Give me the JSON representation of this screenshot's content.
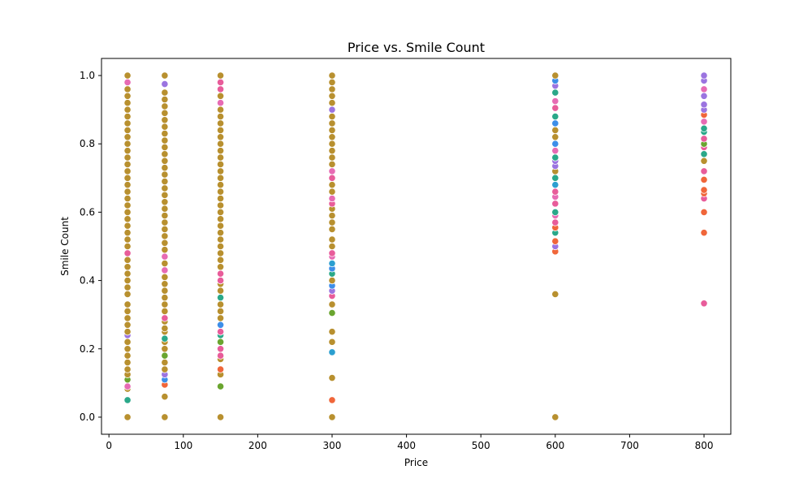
{
  "chart_data": {
    "type": "scatter",
    "title": "Price vs. Smile Count",
    "xlabel": "Price",
    "ylabel": "Smile Count",
    "xlim": [
      -10,
      836
    ],
    "ylim": [
      -0.05,
      1.05
    ],
    "xticks": [
      0,
      100,
      200,
      300,
      400,
      500,
      600,
      700,
      800
    ],
    "yticks": [
      0.0,
      0.2,
      0.4,
      0.6,
      0.8,
      1.0
    ],
    "xtick_labels": [
      "0",
      "100",
      "200",
      "300",
      "400",
      "500",
      "600",
      "700",
      "800"
    ],
    "ytick_labels": [
      "0.0",
      "0.2",
      "0.4",
      "0.6",
      "0.8",
      "1.0"
    ],
    "grid": false,
    "legend": "none",
    "marker_edge_color": "#ffffff",
    "groups": [
      {
        "x": 25,
        "points": [
          [
            0.0,
            "#b8902f"
          ],
          [
            0.05,
            "#2aa889"
          ],
          [
            0.083,
            "#b8902f"
          ],
          [
            0.09,
            "#e76bb4"
          ],
          [
            0.11,
            "#6aa52f"
          ],
          [
            0.125,
            "#b8902f"
          ],
          [
            0.14,
            "#b8902f"
          ],
          [
            0.16,
            "#b8902f"
          ],
          [
            0.18,
            "#b8902f"
          ],
          [
            0.2,
            "#b8902f"
          ],
          [
            0.22,
            "#b8902f"
          ],
          [
            0.24,
            "#9b74e0"
          ],
          [
            0.25,
            "#b8902f"
          ],
          [
            0.27,
            "#b8902f"
          ],
          [
            0.29,
            "#b8902f"
          ],
          [
            0.31,
            "#b8902f"
          ],
          [
            0.33,
            "#b8902f"
          ],
          [
            0.36,
            "#b8902f"
          ],
          [
            0.38,
            "#b8902f"
          ],
          [
            0.4,
            "#b8902f"
          ],
          [
            0.42,
            "#b8902f"
          ],
          [
            0.44,
            "#b8902f"
          ],
          [
            0.46,
            "#b8902f"
          ],
          [
            0.48,
            "#e85c9a"
          ],
          [
            0.5,
            "#b8902f"
          ],
          [
            0.52,
            "#b8902f"
          ],
          [
            0.54,
            "#b8902f"
          ],
          [
            0.56,
            "#b8902f"
          ],
          [
            0.58,
            "#b8902f"
          ],
          [
            0.6,
            "#b8902f"
          ],
          [
            0.62,
            "#b8902f"
          ],
          [
            0.64,
            "#b8902f"
          ],
          [
            0.66,
            "#b8902f"
          ],
          [
            0.68,
            "#b8902f"
          ],
          [
            0.7,
            "#b8902f"
          ],
          [
            0.72,
            "#b8902f"
          ],
          [
            0.74,
            "#b8902f"
          ],
          [
            0.76,
            "#b8902f"
          ],
          [
            0.78,
            "#b8902f"
          ],
          [
            0.8,
            "#b8902f"
          ],
          [
            0.82,
            "#b8902f"
          ],
          [
            0.84,
            "#b8902f"
          ],
          [
            0.86,
            "#b8902f"
          ],
          [
            0.88,
            "#b8902f"
          ],
          [
            0.9,
            "#b8902f"
          ],
          [
            0.92,
            "#b8902f"
          ],
          [
            0.94,
            "#b8902f"
          ],
          [
            0.96,
            "#b8902f"
          ],
          [
            0.98,
            "#e76bb4"
          ],
          [
            1.0,
            "#b8902f"
          ]
        ]
      },
      {
        "x": 75,
        "points": [
          [
            0.0,
            "#b8902f"
          ],
          [
            0.06,
            "#b8902f"
          ],
          [
            0.095,
            "#f0663a"
          ],
          [
            0.11,
            "#3d8ee8"
          ],
          [
            0.125,
            "#9b74e0"
          ],
          [
            0.14,
            "#b8902f"
          ],
          [
            0.16,
            "#b8902f"
          ],
          [
            0.18,
            "#6aa52f"
          ],
          [
            0.2,
            "#b8902f"
          ],
          [
            0.22,
            "#b8902f"
          ],
          [
            0.23,
            "#2aa889"
          ],
          [
            0.25,
            "#b8902f"
          ],
          [
            0.26,
            "#b8902f"
          ],
          [
            0.28,
            "#b8902f"
          ],
          [
            0.29,
            "#e85c9a"
          ],
          [
            0.31,
            "#b8902f"
          ],
          [
            0.33,
            "#b8902f"
          ],
          [
            0.35,
            "#b8902f"
          ],
          [
            0.37,
            "#b8902f"
          ],
          [
            0.39,
            "#b8902f"
          ],
          [
            0.41,
            "#b8902f"
          ],
          [
            0.43,
            "#e76bb4"
          ],
          [
            0.45,
            "#b8902f"
          ],
          [
            0.47,
            "#e76bb4"
          ],
          [
            0.49,
            "#b8902f"
          ],
          [
            0.51,
            "#b8902f"
          ],
          [
            0.53,
            "#b8902f"
          ],
          [
            0.55,
            "#b8902f"
          ],
          [
            0.57,
            "#b8902f"
          ],
          [
            0.59,
            "#b8902f"
          ],
          [
            0.61,
            "#b8902f"
          ],
          [
            0.63,
            "#b8902f"
          ],
          [
            0.65,
            "#b8902f"
          ],
          [
            0.67,
            "#b8902f"
          ],
          [
            0.69,
            "#b8902f"
          ],
          [
            0.71,
            "#b8902f"
          ],
          [
            0.73,
            "#b8902f"
          ],
          [
            0.75,
            "#b8902f"
          ],
          [
            0.77,
            "#b8902f"
          ],
          [
            0.79,
            "#b8902f"
          ],
          [
            0.81,
            "#b8902f"
          ],
          [
            0.83,
            "#b8902f"
          ],
          [
            0.85,
            "#b8902f"
          ],
          [
            0.87,
            "#b8902f"
          ],
          [
            0.89,
            "#b8902f"
          ],
          [
            0.91,
            "#b8902f"
          ],
          [
            0.93,
            "#b8902f"
          ],
          [
            0.95,
            "#b8902f"
          ],
          [
            0.975,
            "#9b74e0"
          ],
          [
            1.0,
            "#b8902f"
          ]
        ]
      },
      {
        "x": 150,
        "points": [
          [
            0.0,
            "#b8902f"
          ],
          [
            0.09,
            "#6aa52f"
          ],
          [
            0.125,
            "#b8902f"
          ],
          [
            0.14,
            "#f0663a"
          ],
          [
            0.17,
            "#b8902f"
          ],
          [
            0.18,
            "#e85c9a"
          ],
          [
            0.2,
            "#e85c9a"
          ],
          [
            0.22,
            "#6aa52f"
          ],
          [
            0.24,
            "#2aa889"
          ],
          [
            0.25,
            "#e85c9a"
          ],
          [
            0.27,
            "#3d8ee8"
          ],
          [
            0.29,
            "#b8902f"
          ],
          [
            0.31,
            "#b8902f"
          ],
          [
            0.33,
            "#b8902f"
          ],
          [
            0.35,
            "#2aa889"
          ],
          [
            0.37,
            "#b8902f"
          ],
          [
            0.39,
            "#b8902f"
          ],
          [
            0.4,
            "#e85c9a"
          ],
          [
            0.42,
            "#e85c9a"
          ],
          [
            0.44,
            "#b8902f"
          ],
          [
            0.46,
            "#b8902f"
          ],
          [
            0.48,
            "#b8902f"
          ],
          [
            0.5,
            "#b8902f"
          ],
          [
            0.52,
            "#b8902f"
          ],
          [
            0.54,
            "#b8902f"
          ],
          [
            0.56,
            "#b8902f"
          ],
          [
            0.58,
            "#b8902f"
          ],
          [
            0.6,
            "#b8902f"
          ],
          [
            0.62,
            "#b8902f"
          ],
          [
            0.64,
            "#b8902f"
          ],
          [
            0.66,
            "#b8902f"
          ],
          [
            0.68,
            "#b8902f"
          ],
          [
            0.7,
            "#b8902f"
          ],
          [
            0.72,
            "#b8902f"
          ],
          [
            0.74,
            "#b8902f"
          ],
          [
            0.76,
            "#b8902f"
          ],
          [
            0.78,
            "#b8902f"
          ],
          [
            0.8,
            "#b8902f"
          ],
          [
            0.82,
            "#b8902f"
          ],
          [
            0.84,
            "#b8902f"
          ],
          [
            0.86,
            "#b8902f"
          ],
          [
            0.88,
            "#b8902f"
          ],
          [
            0.9,
            "#b8902f"
          ],
          [
            0.92,
            "#e76bb4"
          ],
          [
            0.94,
            "#b8902f"
          ],
          [
            0.96,
            "#e85c9a"
          ],
          [
            0.98,
            "#e85c9a"
          ],
          [
            1.0,
            "#b8902f"
          ]
        ]
      },
      {
        "x": 300,
        "points": [
          [
            0.0,
            "#b8902f"
          ],
          [
            0.05,
            "#f0663a"
          ],
          [
            0.115,
            "#b8902f"
          ],
          [
            0.19,
            "#2b9fd0"
          ],
          [
            0.22,
            "#b8902f"
          ],
          [
            0.25,
            "#b8902f"
          ],
          [
            0.305,
            "#6aa52f"
          ],
          [
            0.33,
            "#b8902f"
          ],
          [
            0.355,
            "#e85c9a"
          ],
          [
            0.37,
            "#9b74e0"
          ],
          [
            0.385,
            "#3d8ee8"
          ],
          [
            0.4,
            "#b8902f"
          ],
          [
            0.42,
            "#2aa889"
          ],
          [
            0.435,
            "#3d8ee8"
          ],
          [
            0.45,
            "#2b9fd0"
          ],
          [
            0.47,
            "#e76bb4"
          ],
          [
            0.48,
            "#e85c9a"
          ],
          [
            0.5,
            "#b8902f"
          ],
          [
            0.52,
            "#b8902f"
          ],
          [
            0.55,
            "#b8902f"
          ],
          [
            0.57,
            "#b8902f"
          ],
          [
            0.59,
            "#b8902f"
          ],
          [
            0.61,
            "#b8902f"
          ],
          [
            0.625,
            "#e85c9a"
          ],
          [
            0.64,
            "#e76bb4"
          ],
          [
            0.66,
            "#b8902f"
          ],
          [
            0.68,
            "#b8902f"
          ],
          [
            0.7,
            "#e85c9a"
          ],
          [
            0.72,
            "#e76bb4"
          ],
          [
            0.74,
            "#b8902f"
          ],
          [
            0.76,
            "#b8902f"
          ],
          [
            0.78,
            "#b8902f"
          ],
          [
            0.8,
            "#b8902f"
          ],
          [
            0.82,
            "#b8902f"
          ],
          [
            0.84,
            "#b8902f"
          ],
          [
            0.86,
            "#b8902f"
          ],
          [
            0.88,
            "#b8902f"
          ],
          [
            0.9,
            "#9b74e0"
          ],
          [
            0.92,
            "#b8902f"
          ],
          [
            0.94,
            "#b8902f"
          ],
          [
            0.96,
            "#b8902f"
          ],
          [
            0.98,
            "#b8902f"
          ],
          [
            1.0,
            "#b8902f"
          ]
        ]
      },
      {
        "x": 600,
        "points": [
          [
            0.0,
            "#b8902f"
          ],
          [
            0.36,
            "#b8902f"
          ],
          [
            0.485,
            "#f0663a"
          ],
          [
            0.5,
            "#9b74e0"
          ],
          [
            0.515,
            "#f0663a"
          ],
          [
            0.54,
            "#2aa889"
          ],
          [
            0.555,
            "#f0663a"
          ],
          [
            0.57,
            "#e85c9a"
          ],
          [
            0.59,
            "#e76bb4"
          ],
          [
            0.6,
            "#2aa889"
          ],
          [
            0.625,
            "#e85c9a"
          ],
          [
            0.645,
            "#e76bb4"
          ],
          [
            0.66,
            "#e85c9a"
          ],
          [
            0.68,
            "#2b9fd0"
          ],
          [
            0.7,
            "#2aa889"
          ],
          [
            0.72,
            "#b8902f"
          ],
          [
            0.735,
            "#9b74e0"
          ],
          [
            0.75,
            "#9b74e0"
          ],
          [
            0.76,
            "#2aa889"
          ],
          [
            0.78,
            "#e76bb4"
          ],
          [
            0.8,
            "#3d8ee8"
          ],
          [
            0.82,
            "#b8902f"
          ],
          [
            0.84,
            "#b8902f"
          ],
          [
            0.86,
            "#3d8ee8"
          ],
          [
            0.88,
            "#2aa889"
          ],
          [
            0.905,
            "#e85c9a"
          ],
          [
            0.925,
            "#e76bb4"
          ],
          [
            0.95,
            "#2aa889"
          ],
          [
            0.97,
            "#9b74e0"
          ],
          [
            0.985,
            "#3d8ee8"
          ],
          [
            1.0,
            "#b8902f"
          ]
        ]
      },
      {
        "x": 800,
        "points": [
          [
            0.333,
            "#e85c9a"
          ],
          [
            0.54,
            "#f0663a"
          ],
          [
            0.6,
            "#f0663a"
          ],
          [
            0.64,
            "#e85c9a"
          ],
          [
            0.655,
            "#f0663a"
          ],
          [
            0.665,
            "#f0663a"
          ],
          [
            0.695,
            "#f0663a"
          ],
          [
            0.72,
            "#e85c9a"
          ],
          [
            0.75,
            "#b8902f"
          ],
          [
            0.77,
            "#2aa889"
          ],
          [
            0.79,
            "#e85c9a"
          ],
          [
            0.8,
            "#6aa52f"
          ],
          [
            0.815,
            "#e85c9a"
          ],
          [
            0.835,
            "#2aa889"
          ],
          [
            0.845,
            "#2aa889"
          ],
          [
            0.865,
            "#e76bb4"
          ],
          [
            0.885,
            "#f0663a"
          ],
          [
            0.9,
            "#9b74e0"
          ],
          [
            0.915,
            "#9b74e0"
          ],
          [
            0.94,
            "#9b74e0"
          ],
          [
            0.96,
            "#e76bb4"
          ],
          [
            0.985,
            "#9b74e0"
          ],
          [
            1.0,
            "#9b74e0"
          ]
        ]
      }
    ]
  }
}
